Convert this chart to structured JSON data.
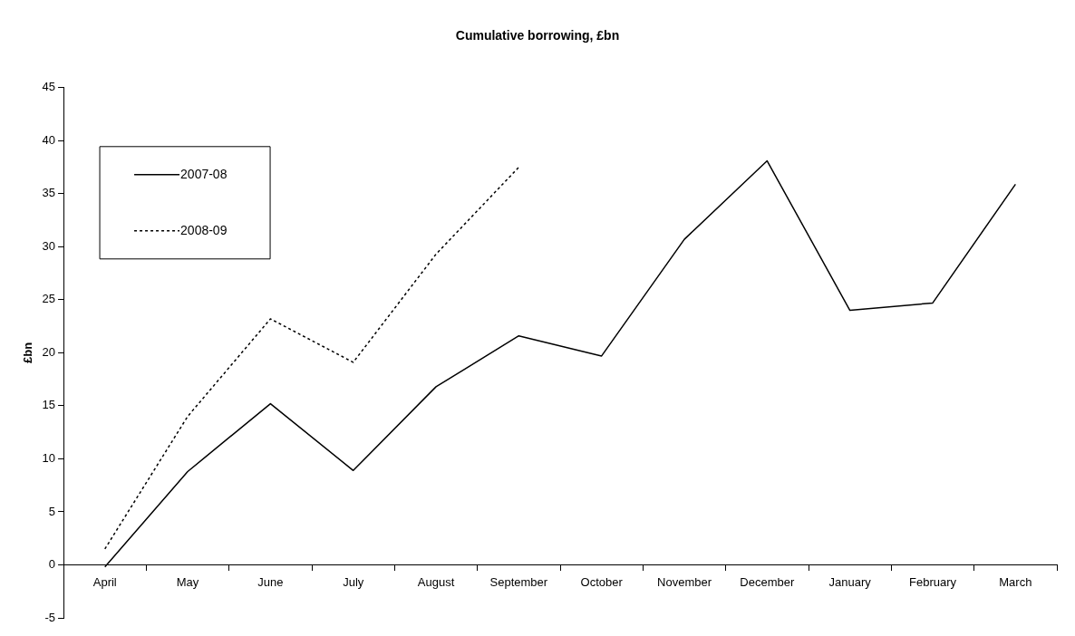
{
  "chart_data": {
    "type": "line",
    "title": "Cumulative borrowing, £bn",
    "ylabel": "£bn",
    "categories": [
      "April",
      "May",
      "June",
      "July",
      "August",
      "September",
      "October",
      "November",
      "December",
      "January",
      "February",
      "March"
    ],
    "series": [
      {
        "name": "2007-08",
        "color": "#000000",
        "line_style": "solid",
        "values": [
          -0.2,
          8.8,
          15.2,
          8.9,
          16.8,
          21.6,
          19.7,
          30.7,
          38.1,
          24.0,
          24.7,
          35.9
        ]
      },
      {
        "name": "2008-09",
        "color": "#000000",
        "line_style": "dotted",
        "values": [
          1.5,
          14.0,
          23.2,
          19.1,
          29.3,
          37.5,
          null,
          null,
          null,
          null,
          null,
          null
        ]
      }
    ],
    "ylim": [
      -5,
      45
    ],
    "yticks": [
      -5,
      0,
      5,
      10,
      15,
      20,
      25,
      30,
      35,
      40,
      45
    ],
    "grid": false,
    "legend": "top left",
    "marker": "none"
  }
}
